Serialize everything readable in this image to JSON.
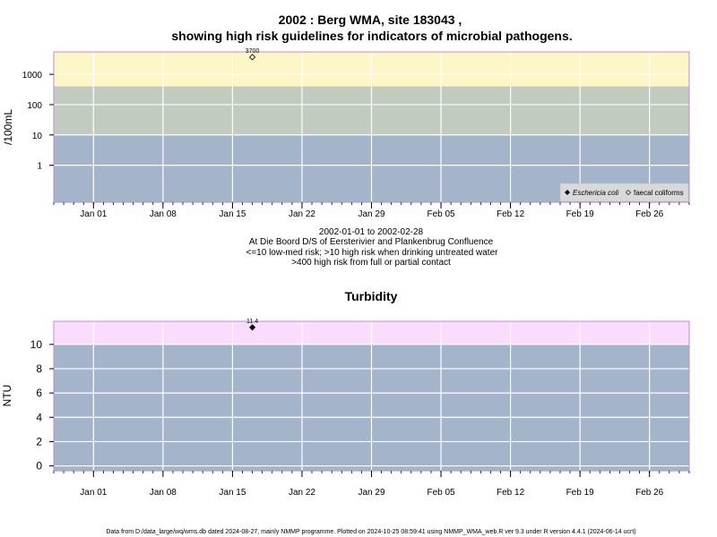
{
  "figure": {
    "title_line1": "2002 : Berg WMA, site 183043 ,",
    "title_line2": "showing high risk guidelines for indicators of microbial pathogens.",
    "notes": [
      "2002-01-01 to 2002-02-28",
      "At Die Boord D/S of Eersterivier and Plankenbrug Confluence",
      "<=10 low-med risk; >10 high risk when drinking untreated water",
      ">400 high risk from full or partial contact"
    ],
    "footer": "Data from D:/data_large/wq/wms.db dated 2024-08-27, mainly NMMP programme. Plotted on 2024-10-25 08:59:41 using NMMP_WMA_web.R ver 9.3 under R version 4.4.1 (2024-06-14 ucrt)"
  },
  "colors": {
    "band_low": "#a3b4cb",
    "band_mid": "#c2cbc0",
    "band_high": "#fdf6c6",
    "band_turb_high": "#fcdcfc",
    "frame": "#c48ad0",
    "grid": "#ffffff"
  },
  "chart_data": [
    {
      "type": "scatter",
      "title": "",
      "ylabel": "/100mL",
      "xlabel": "",
      "x_range": [
        "2001-12-28",
        "2002-03-02"
      ],
      "x_tick_labels": [
        "Jan 01",
        "Jan 08",
        "Jan 15",
        "Jan 22",
        "Jan 29",
        "Feb 05",
        "Feb 12",
        "Feb 19",
        "Feb 26"
      ],
      "x_tick_dates": [
        "2002-01-01",
        "2002-01-08",
        "2002-01-15",
        "2002-01-22",
        "2002-01-29",
        "2002-02-05",
        "2002-02-12",
        "2002-02-19",
        "2002-02-26"
      ],
      "y_scale": "log",
      "y_range": [
        0.06,
        5500
      ],
      "y_tick_labels": [
        "1",
        "10",
        "100",
        "1000"
      ],
      "y_tick_values": [
        1,
        10,
        100,
        1000
      ],
      "bands": [
        {
          "from": 0.06,
          "to": 10,
          "color": "#a3b4cb"
        },
        {
          "from": 10,
          "to": 400,
          "color": "#c2cbc0"
        },
        {
          "from": 400,
          "to": 5500,
          "color": "#fdf6c6"
        }
      ],
      "grid": true,
      "legend_position": "bottom-right",
      "series": [
        {
          "name": "Eschericia coli",
          "marker": "filled-diamond",
          "points": []
        },
        {
          "name": "faecal coliforms",
          "marker": "open-diamond",
          "points": [
            {
              "x": "2002-01-17",
              "y": 3700,
              "label": "3700"
            }
          ]
        }
      ]
    },
    {
      "type": "scatter",
      "title": "Turbidity",
      "ylabel": "NTU",
      "xlabel": "",
      "x_range": [
        "2001-12-28",
        "2002-03-02"
      ],
      "x_tick_labels": [
        "Jan 01",
        "Jan 08",
        "Jan 15",
        "Jan 22",
        "Jan 29",
        "Feb 05",
        "Feb 12",
        "Feb 19",
        "Feb 26"
      ],
      "x_tick_dates": [
        "2002-01-01",
        "2002-01-08",
        "2002-01-15",
        "2002-01-22",
        "2002-01-29",
        "2002-02-05",
        "2002-02-12",
        "2002-02-19",
        "2002-02-26"
      ],
      "y_scale": "linear",
      "y_range": [
        -0.4,
        11.9
      ],
      "y_tick_labels": [
        "0",
        "2",
        "4",
        "6",
        "8",
        "10"
      ],
      "y_tick_values": [
        0,
        2,
        4,
        6,
        8,
        10
      ],
      "bands": [
        {
          "from": -0.4,
          "to": 10,
          "color": "#a3b4cb"
        },
        {
          "from": 10,
          "to": 11.9,
          "color": "#fcdcfc"
        }
      ],
      "grid": true,
      "series": [
        {
          "name": "",
          "marker": "filled-diamond",
          "points": [
            {
              "x": "2002-01-17",
              "y": 11.4,
              "label": "11.4"
            }
          ]
        }
      ]
    }
  ]
}
